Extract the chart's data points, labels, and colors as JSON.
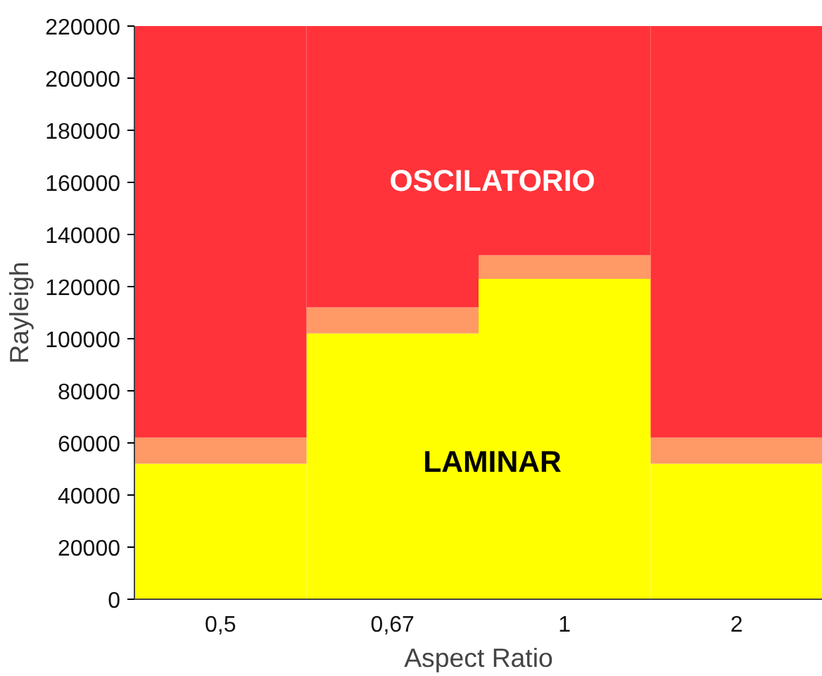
{
  "chart_data": {
    "type": "bar",
    "stacked": true,
    "xlabel": "Aspect Ratio",
    "ylabel": "Rayleigh",
    "categories": [
      "0,5",
      "0,67",
      "1",
      "2"
    ],
    "series": [
      {
        "color": "#ffff00",
        "values": [
          52000,
          102000,
          123000,
          52000
        ]
      },
      {
        "color": "#ff9966",
        "values": [
          10000,
          10000,
          9000,
          10000
        ]
      },
      {
        "color": "#ff3339",
        "values": [
          158000,
          108000,
          88000,
          158000
        ]
      }
    ],
    "ylim": [
      0,
      220000
    ],
    "yticks": [
      0,
      20000,
      40000,
      60000,
      80000,
      100000,
      120000,
      140000,
      160000,
      180000,
      200000,
      220000
    ],
    "grid": false,
    "annotations": [
      "OSCILATORIO",
      "LAMINAR"
    ]
  }
}
